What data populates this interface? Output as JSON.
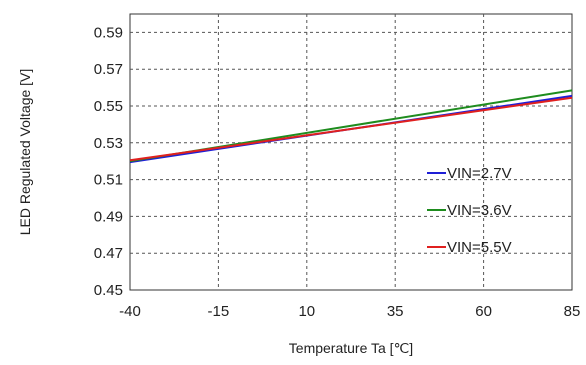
{
  "chart_data": {
    "type": "line",
    "title": "",
    "xlabel": "Temperature Ta [℃]",
    "ylabel": "LED Regulated Voltage [V]",
    "xlim": [
      -40,
      85
    ],
    "ylim": [
      0.45,
      0.6
    ],
    "x_ticks": [
      -40,
      -15,
      10,
      35,
      60,
      85
    ],
    "y_ticks": [
      0.45,
      0.47,
      0.49,
      0.51,
      0.53,
      0.55,
      0.57,
      0.59
    ],
    "x_tick_labels": [
      "-40",
      "-15",
      "10",
      "35",
      "60",
      "85"
    ],
    "y_tick_labels": [
      "0.45",
      "0.47",
      "0.49",
      "0.51",
      "0.53",
      "0.55",
      "0.57",
      "0.59"
    ],
    "grid": true,
    "legend_position": "lower-right",
    "series": [
      {
        "name": "VIN=2.7V",
        "color": "#1f1fd6",
        "x": [
          -40,
          85
        ],
        "y": [
          0.5195,
          0.5555
        ]
      },
      {
        "name": "VIN=3.6V",
        "color": "#1e8c1e",
        "x": [
          -40,
          85
        ],
        "y": [
          0.52,
          0.5585
        ]
      },
      {
        "name": "VIN=5.5V",
        "color": "#e0201f",
        "x": [
          -40,
          85
        ],
        "y": [
          0.5205,
          0.5545
        ]
      }
    ]
  }
}
